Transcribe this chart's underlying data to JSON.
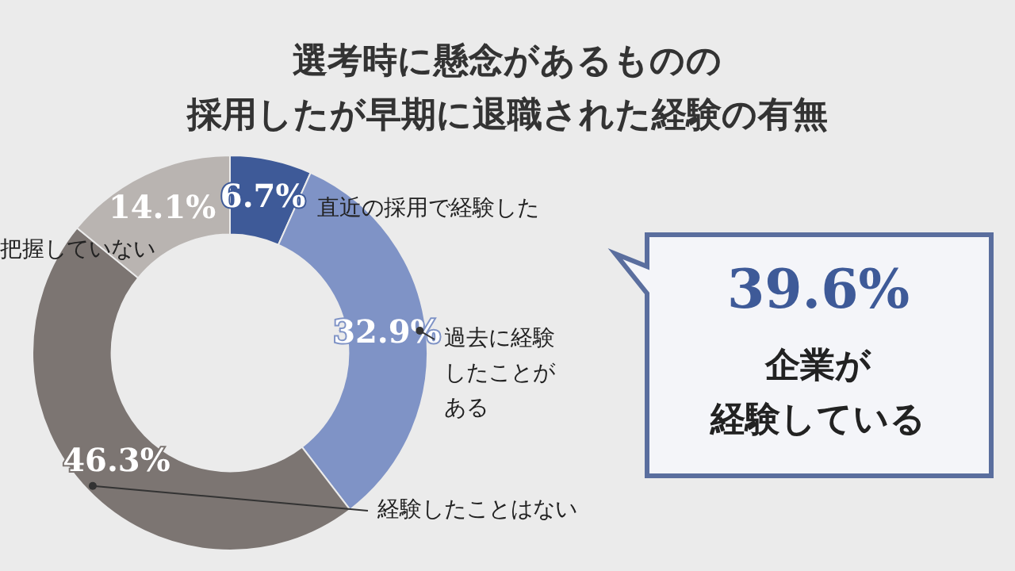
{
  "chart_data": {
    "type": "donut",
    "title": "選考時に懸念があるものの",
    "subtitle": "採用したが早期に退職された経験の有無",
    "categories": [
      "直近の採用で経験した",
      "過去に経験したことがある",
      "経験したことはない",
      "把握していない"
    ],
    "values": [
      6.7,
      32.9,
      46.3,
      14.1
    ],
    "value_labels": [
      "6.7%",
      "32.9%",
      "46.3%",
      "14.1%"
    ],
    "colors": [
      "#3e5a98",
      "#7f93c6",
      "#7c7572",
      "#b9b4b1"
    ],
    "legend": false,
    "annotations": [
      "39.6%",
      "企業が",
      "経験している"
    ]
  }
}
